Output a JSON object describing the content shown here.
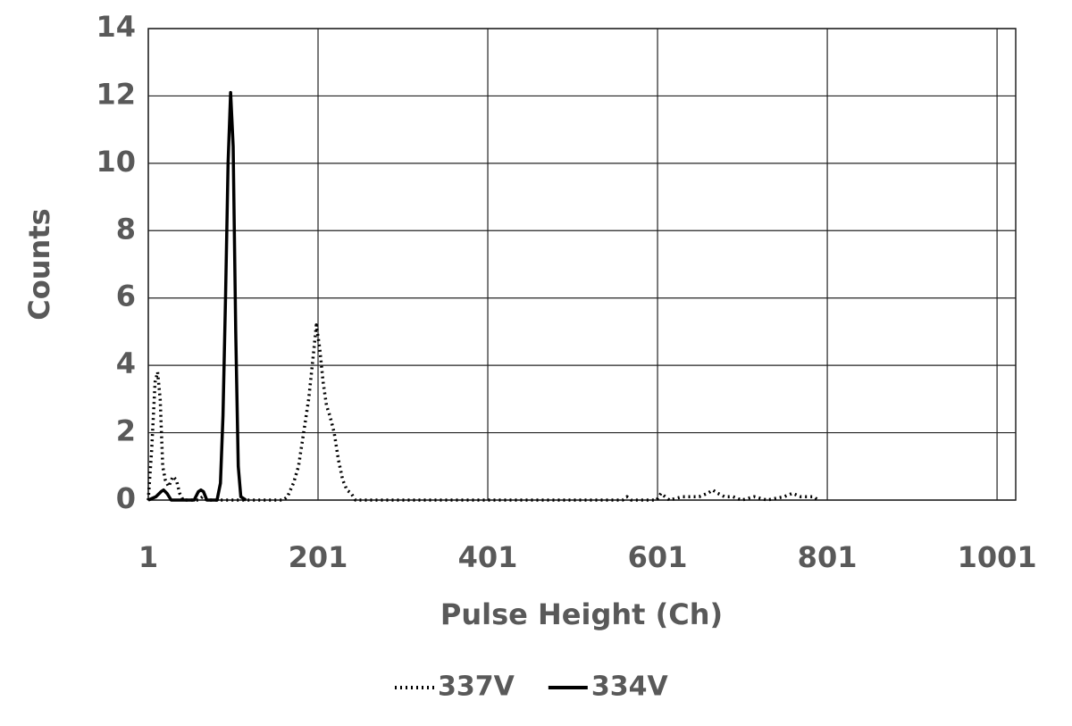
{
  "chart_data": {
    "type": "line",
    "x_label": "Pulse Height (Ch)",
    "y_label": "Counts",
    "xlim": [
      1,
      1023
    ],
    "xticks": [
      1,
      201,
      401,
      601,
      801,
      1001
    ],
    "ylim": [
      0,
      14
    ],
    "yticks": [
      0,
      2,
      4,
      6,
      8,
      10,
      12,
      14
    ],
    "grid": true,
    "legend": "bottom",
    "series": [
      {
        "name": "337V",
        "color": "#000000",
        "style": "dotted",
        "x": [
          1,
          5,
          9,
          12,
          15,
          18,
          21,
          25,
          30,
          34,
          38,
          42,
          60,
          65,
          70,
          160,
          165,
          172,
          178,
          184,
          190,
          195,
          199,
          203,
          207,
          211,
          215,
          220,
          225,
          230,
          235,
          240,
          245,
          560,
          565,
          570,
          600,
          605,
          610,
          615,
          630,
          640,
          650,
          660,
          666,
          672,
          680,
          690,
          700,
          715,
          730,
          750,
          760,
          770,
          785,
          790
        ],
        "values": [
          0,
          1.5,
          3.5,
          3.8,
          3,
          1,
          0.6,
          0.4,
          0.7,
          0.6,
          0.2,
          0,
          0,
          0.1,
          0,
          0,
          0.1,
          0.5,
          1,
          2,
          3,
          4.2,
          5.2,
          4.5,
          3.5,
          2.8,
          2.5,
          2,
          1.2,
          0.6,
          0.3,
          0.2,
          0,
          0,
          0.1,
          0,
          0,
          0.2,
          0.1,
          0,
          0.1,
          0.1,
          0.1,
          0.2,
          0.3,
          0.2,
          0.1,
          0.1,
          0,
          0.1,
          0,
          0.1,
          0.2,
          0.1,
          0.1,
          0
        ]
      },
      {
        "name": "334V",
        "color": "#000000",
        "style": "solid",
        "x": [
          1,
          10,
          16,
          19,
          23,
          28,
          55,
          60,
          63,
          66,
          70,
          82,
          86,
          89,
          92,
          95,
          98,
          101,
          104,
          107,
          110,
          116
        ],
        "values": [
          0,
          0.1,
          0.25,
          0.3,
          0.2,
          0,
          0,
          0.25,
          0.3,
          0.25,
          0,
          0,
          0.5,
          2.5,
          6,
          10,
          12.1,
          10.5,
          5,
          1,
          0.1,
          0
        ]
      }
    ]
  }
}
